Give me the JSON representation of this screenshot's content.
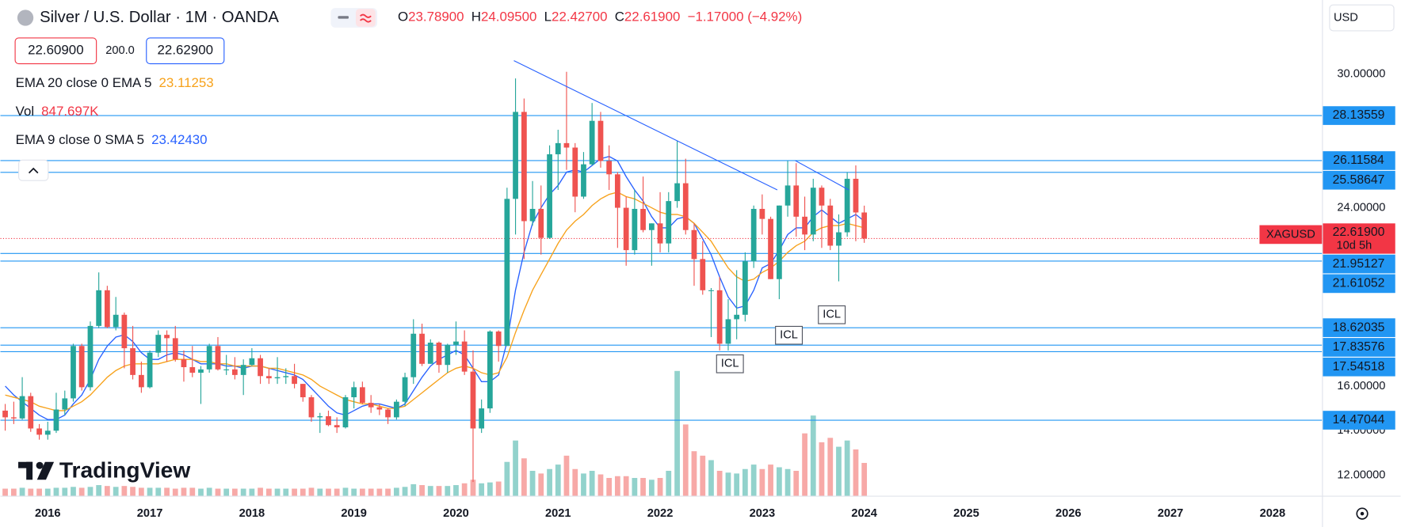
{
  "header": {
    "title": "Silver / U.S. Dollar · 1M · OANDA",
    "ohlc": [
      {
        "key": "O",
        "value": "23.78900"
      },
      {
        "key": "H",
        "value": "24.09500"
      },
      {
        "key": "L",
        "value": "22.42700"
      },
      {
        "key": "C",
        "value": "22.61900"
      }
    ],
    "change": "−1.17000 (−4.92%)",
    "bid": "22.60900",
    "spread": "200.0",
    "ask": "22.62900",
    "ema20_value": "23.11253",
    "vol_value": "847.697K",
    "ema9_value": "23.42430",
    "currency": "USD",
    "logo": "TradingView"
  },
  "chart_data": {
    "type": "candlestick",
    "up_color": "#26a69a",
    "down_color": "#ef5350",
    "x": [
      2015.583,
      2015.667,
      2015.75,
      2015.833,
      2015.917,
      2016,
      2016.083,
      2016.167,
      2016.25,
      2016.333,
      2016.417,
      2016.5,
      2016.583,
      2016.667,
      2016.75,
      2016.833,
      2016.917,
      2017,
      2017.083,
      2017.167,
      2017.25,
      2017.333,
      2017.417,
      2017.5,
      2017.583,
      2017.667,
      2017.75,
      2017.833,
      2017.917,
      2018,
      2018.083,
      2018.167,
      2018.25,
      2018.333,
      2018.417,
      2018.5,
      2018.583,
      2018.667,
      2018.75,
      2018.833,
      2018.917,
      2019,
      2019.083,
      2019.167,
      2019.25,
      2019.333,
      2019.417,
      2019.5,
      2019.583,
      2019.667,
      2019.75,
      2019.833,
      2019.917,
      2020,
      2020.083,
      2020.167,
      2020.25,
      2020.333,
      2020.417,
      2020.5,
      2020.583,
      2020.667,
      2020.75,
      2020.833,
      2020.917,
      2021,
      2021.083,
      2021.167,
      2021.25,
      2021.333,
      2021.417,
      2021.5,
      2021.583,
      2021.667,
      2021.75,
      2021.833,
      2021.917,
      2022,
      2022.083,
      2022.167,
      2022.25,
      2022.333,
      2022.417,
      2022.5,
      2022.583,
      2022.667,
      2022.75,
      2022.833,
      2022.917,
      2023,
      2023.083,
      2023.167,
      2023.25,
      2023.333,
      2023.417,
      2023.5,
      2023.583,
      2023.667,
      2023.75,
      2023.833,
      2023.917,
      2024
    ],
    "ohlc": [
      [
        14.9,
        15.2,
        14.0,
        14.6
      ],
      [
        14.6,
        15.3,
        14.3,
        14.55
      ],
      [
        14.55,
        16.4,
        14.5,
        15.55
      ],
      [
        15.55,
        15.7,
        13.95,
        14.1
      ],
      [
        14.1,
        14.3,
        13.6,
        13.82
      ],
      [
        13.82,
        14.4,
        13.6,
        14.0
      ],
      [
        14.0,
        15.7,
        13.9,
        14.95
      ],
      [
        14.95,
        15.8,
        14.7,
        15.45
      ],
      [
        15.45,
        17.9,
        15.3,
        17.8
      ],
      [
        17.8,
        17.9,
        15.8,
        15.95
      ],
      [
        15.95,
        18.9,
        15.8,
        18.7
      ],
      [
        18.7,
        21.1,
        18.6,
        20.3
      ],
      [
        20.3,
        20.5,
        18.6,
        18.65
      ],
      [
        18.65,
        20.0,
        18.5,
        19.2
      ],
      [
        19.2,
        19.3,
        16.8,
        17.7
      ],
      [
        17.7,
        18.7,
        16.3,
        16.5
      ],
      [
        16.5,
        17.1,
        15.7,
        15.95
      ],
      [
        15.95,
        17.6,
        15.9,
        17.5
      ],
      [
        17.5,
        18.5,
        17.3,
        18.3
      ],
      [
        18.3,
        18.5,
        17.1,
        18.15
      ],
      [
        18.15,
        18.7,
        17.1,
        17.2
      ],
      [
        17.2,
        17.6,
        16.2,
        16.85
      ],
      [
        16.85,
        17.8,
        16.4,
        16.6
      ],
      [
        16.6,
        16.9,
        15.2,
        16.75
      ],
      [
        16.75,
        17.9,
        16.6,
        17.8
      ],
      [
        17.8,
        18.2,
        16.7,
        16.75
      ],
      [
        16.75,
        17.4,
        16.5,
        16.75
      ],
      [
        16.75,
        17.3,
        16.3,
        16.5
      ],
      [
        16.5,
        17.2,
        15.6,
        16.95
      ],
      [
        16.95,
        17.7,
        16.9,
        17.25
      ],
      [
        17.25,
        17.4,
        16.1,
        16.45
      ],
      [
        16.45,
        16.8,
        16.1,
        16.35
      ],
      [
        16.35,
        17.3,
        16.1,
        16.4
      ],
      [
        16.4,
        16.8,
        16.1,
        16.45
      ],
      [
        16.45,
        17.0,
        15.9,
        16.1
      ],
      [
        16.1,
        16.1,
        15.3,
        15.5
      ],
      [
        15.5,
        15.6,
        14.4,
        14.6
      ],
      [
        14.6,
        14.8,
        13.9,
        14.65
      ],
      [
        14.65,
        14.9,
        14.2,
        14.25
      ],
      [
        14.25,
        14.6,
        13.9,
        14.15
      ],
      [
        14.15,
        15.6,
        14.1,
        15.5
      ],
      [
        15.5,
        16.2,
        15.0,
        15.95
      ],
      [
        15.95,
        16.2,
        15.2,
        15.25
      ],
      [
        15.25,
        15.6,
        14.8,
        15.05
      ],
      [
        15.05,
        15.2,
        14.7,
        14.95
      ],
      [
        14.95,
        15.0,
        14.3,
        14.6
      ],
      [
        14.6,
        15.4,
        14.5,
        15.3
      ],
      [
        15.3,
        16.6,
        15.1,
        16.4
      ],
      [
        16.4,
        19.0,
        16.1,
        18.35
      ],
      [
        18.35,
        18.8,
        16.9,
        17.0
      ],
      [
        17.0,
        18.1,
        17.0,
        17.95
      ],
      [
        17.95,
        18.0,
        16.6,
        16.95
      ],
      [
        16.95,
        17.9,
        16.6,
        17.85
      ],
      [
        17.85,
        18.9,
        17.4,
        18.0
      ],
      [
        18.0,
        18.5,
        16.5,
        16.65
      ],
      [
        16.65,
        17.6,
        11.7,
        14.1
      ],
      [
        14.1,
        15.4,
        13.9,
        15.0
      ],
      [
        15.0,
        18.5,
        14.8,
        18.45
      ],
      [
        18.45,
        18.5,
        17.1,
        17.8
      ],
      [
        17.8,
        24.9,
        17.8,
        24.4
      ],
      [
        24.4,
        29.8,
        22.8,
        28.3
      ],
      [
        28.3,
        28.9,
        21.7,
        23.4
      ],
      [
        23.4,
        25.2,
        23.2,
        23.95
      ],
      [
        23.95,
        25.0,
        21.9,
        22.65
      ],
      [
        22.65,
        26.8,
        22.6,
        26.4
      ],
      [
        26.4,
        27.5,
        24.8,
        26.9
      ],
      [
        26.9,
        30.1,
        25.7,
        26.7
      ],
      [
        26.7,
        26.9,
        23.8,
        24.5
      ],
      [
        24.5,
        26.5,
        24.4,
        25.95
      ],
      [
        25.95,
        28.7,
        25.9,
        27.9
      ],
      [
        27.9,
        28.3,
        25.8,
        26.1
      ],
      [
        26.1,
        26.8,
        24.8,
        25.5
      ],
      [
        25.5,
        25.6,
        22.2,
        24.0
      ],
      [
        24.0,
        24.5,
        21.4,
        22.1
      ],
      [
        22.1,
        24.8,
        21.9,
        23.95
      ],
      [
        23.95,
        25.4,
        22.9,
        23.0
      ],
      [
        23.0,
        23.3,
        21.4,
        23.3
      ],
      [
        23.3,
        24.7,
        22.0,
        22.4
      ],
      [
        22.4,
        24.7,
        22.0,
        24.3
      ],
      [
        24.3,
        27.0,
        24.0,
        25.1
      ],
      [
        25.1,
        26.2,
        22.8,
        23.0
      ],
      [
        23.0,
        23.3,
        20.5,
        21.7
      ],
      [
        21.7,
        22.5,
        20.1,
        20.3
      ],
      [
        20.3,
        20.4,
        18.2,
        20.3
      ],
      [
        20.3,
        20.9,
        17.6,
        17.9
      ],
      [
        17.9,
        19.9,
        17.6,
        19.0
      ],
      [
        19.0,
        21.2,
        18.1,
        19.2
      ],
      [
        19.2,
        22.0,
        18.9,
        21.6
      ],
      [
        21.6,
        24.1,
        21.3,
        23.95
      ],
      [
        23.95,
        24.6,
        22.8,
        23.5
      ],
      [
        23.5,
        23.6,
        20.8,
        20.8
      ],
      [
        20.8,
        24.1,
        19.9,
        24.1
      ],
      [
        24.1,
        26.1,
        23.6,
        25.0
      ],
      [
        25.0,
        26.0,
        22.7,
        23.6
      ],
      [
        23.6,
        24.5,
        22.1,
        22.8
      ],
      [
        22.8,
        25.3,
        22.5,
        24.9
      ],
      [
        24.9,
        25.0,
        22.2,
        24.1
      ],
      [
        24.1,
        24.4,
        22.1,
        22.3
      ],
      [
        22.3,
        23.7,
        20.7,
        22.9
      ],
      [
        22.9,
        25.6,
        22.7,
        25.3
      ],
      [
        25.3,
        25.9,
        22.5,
        23.79
      ],
      [
        23.789,
        24.095,
        22.427,
        22.619
      ]
    ],
    "volume": {
      "name": "Vol",
      "up_color": "#92d2cc",
      "down_color": "#f7a9a7",
      "values": [
        184000,
        184000,
        207000,
        184000,
        184000,
        184000,
        207000,
        207000,
        230000,
        207000,
        230000,
        276000,
        253000,
        230000,
        253000,
        230000,
        207000,
        207000,
        207000,
        207000,
        184000,
        207000,
        207000,
        184000,
        207000,
        184000,
        184000,
        184000,
        184000,
        184000,
        207000,
        184000,
        184000,
        184000,
        184000,
        184000,
        207000,
        184000,
        184000,
        184000,
        207000,
        184000,
        184000,
        184000,
        184000,
        184000,
        207000,
        230000,
        299000,
        276000,
        253000,
        253000,
        253000,
        276000,
        322000,
        414000,
        322000,
        345000,
        368000,
        874000,
        1426000,
        966000,
        644000,
        575000,
        690000,
        805000,
        1035000,
        690000,
        575000,
        644000,
        552000,
        460000,
        506000,
        506000,
        460000,
        460000,
        414000,
        460000,
        644000,
        3220000,
        1840000,
        1150000,
        1035000,
        920000,
        644000,
        598000,
        575000,
        690000,
        805000,
        690000,
        805000,
        736000,
        690000,
        644000,
        1610000,
        2070000,
        1380000,
        1495000,
        1265000,
        1426000,
        1196000,
        847697
      ]
    },
    "series": [
      {
        "name": "EMA 9 close 0 SMA 5",
        "color": "#2962ff",
        "values": [
          16.0,
          15.6,
          15.3,
          15.0,
          14.7,
          14.5,
          14.5,
          14.7,
          15.2,
          15.6,
          16.3,
          17.2,
          17.8,
          18.2,
          18.3,
          18.0,
          17.5,
          17.2,
          17.2,
          17.4,
          17.5,
          17.4,
          17.2,
          17.0,
          17.0,
          17.0,
          16.9,
          16.9,
          16.8,
          16.9,
          16.9,
          16.8,
          16.7,
          16.6,
          16.5,
          16.3,
          15.9,
          15.5,
          15.1,
          14.8,
          14.7,
          14.9,
          15.1,
          15.2,
          15.2,
          15.1,
          15.0,
          15.2,
          15.8,
          16.4,
          16.9,
          17.2,
          17.4,
          17.6,
          17.4,
          16.8,
          16.2,
          16.2,
          16.5,
          18.0,
          20.3,
          22.0,
          23.3,
          24.0,
          24.6,
          25.0,
          25.6,
          25.7,
          25.6,
          25.9,
          26.2,
          26.3,
          26.1,
          25.4,
          24.8,
          24.3,
          23.6,
          23.1,
          23.1,
          23.5,
          23.6,
          23.3,
          22.6,
          21.9,
          20.9,
          20.0,
          19.5,
          19.6,
          20.3,
          21.3,
          21.5,
          22.1,
          22.8,
          23.1,
          23.1,
          23.6,
          23.9,
          23.6,
          23.3,
          23.5,
          23.7,
          23.4
        ]
      },
      {
        "name": "EMA 20 close 0 EMA 5",
        "color": "#f7a21b",
        "values": [
          15.6,
          15.5,
          15.4,
          15.3,
          15.1,
          15.0,
          14.9,
          14.9,
          15.1,
          15.3,
          15.6,
          16.0,
          16.4,
          16.7,
          16.9,
          17.0,
          17.0,
          17.0,
          17.0,
          17.1,
          17.2,
          17.2,
          17.2,
          17.1,
          17.1,
          17.0,
          17.0,
          16.9,
          16.9,
          16.9,
          16.9,
          16.8,
          16.8,
          16.7,
          16.6,
          16.5,
          16.3,
          16.0,
          15.8,
          15.6,
          15.4,
          15.3,
          15.2,
          15.2,
          15.1,
          15.0,
          15.0,
          15.1,
          15.4,
          15.7,
          16.0,
          16.3,
          16.6,
          16.8,
          16.9,
          16.8,
          16.6,
          16.5,
          16.6,
          17.3,
          18.4,
          19.4,
          20.3,
          21.0,
          21.7,
          22.4,
          23.0,
          23.4,
          23.7,
          24.1,
          24.4,
          24.6,
          24.7,
          24.5,
          24.4,
          24.2,
          24.0,
          23.8,
          23.7,
          23.7,
          23.6,
          23.3,
          22.9,
          22.5,
          21.9,
          21.3,
          20.9,
          20.7,
          20.8,
          21.1,
          21.3,
          21.6,
          22.0,
          22.3,
          22.5,
          22.9,
          23.1,
          23.2,
          23.2,
          23.3,
          23.2,
          23.1
        ]
      }
    ],
    "levels": {
      "color": "#2196f3",
      "values": [
        28.13559,
        26.11584,
        25.58647,
        21.95127,
        21.61052,
        18.62035,
        17.83576,
        17.54518,
        14.47044
      ]
    },
    "price": {
      "label": "XAGUSD",
      "value_label": "22.61900",
      "countdown": "10d 5h",
      "color": "#f23645"
    },
    "annotations": [
      "ICL",
      "ICL",
      "ICL"
    ],
    "xlim": [
      2015.536,
      2028.485
    ],
    "xticks": [
      2016,
      2017,
      2018,
      2019,
      2020,
      2021,
      2022,
      2023,
      2024,
      2025,
      2026,
      2027,
      2028
    ],
    "ylim": [
      11.08,
      33.32
    ],
    "yticks": [
      {
        "value": 12,
        "label": "12.00000"
      },
      {
        "value": 14,
        "label": "14.00000"
      },
      {
        "value": 16,
        "label": "16.00000"
      },
      {
        "value": 24,
        "label": "24.00000"
      },
      {
        "value": 30,
        "label": "30.00000"
      }
    ],
    "grid": false
  }
}
